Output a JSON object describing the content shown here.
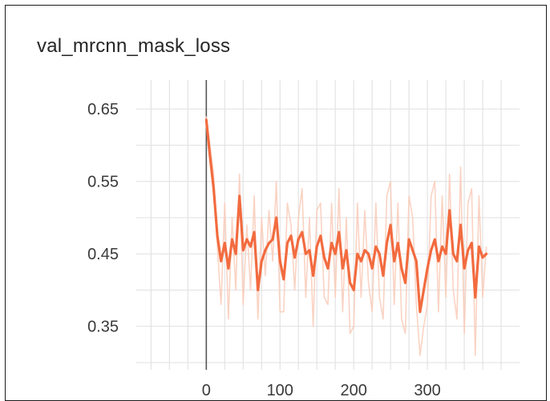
{
  "chart_data": {
    "type": "line",
    "title": "val_mrcnn_mask_loss",
    "xlabel": "",
    "ylabel": "",
    "xlim": [
      -95,
      425
    ],
    "ylim": [
      0.29,
      0.69
    ],
    "x_ticks": [
      0,
      100,
      200,
      300
    ],
    "y_ticks": [
      0.35,
      0.45,
      0.55,
      0.65
    ],
    "y_tick_labels": [
      "0.35",
      "0.45",
      "0.55",
      "0.65"
    ],
    "x_tick_labels": [
      "0",
      "100",
      "200",
      "300"
    ],
    "grid": true,
    "smoothed_color": "#f26b3f",
    "raw_color": "#f9cbb8",
    "series": [
      {
        "x": [
          0,
          5,
          10,
          15,
          20,
          25,
          30,
          35,
          40,
          45,
          50,
          55,
          60,
          65,
          70,
          75,
          80,
          85,
          90,
          95,
          100,
          105,
          110,
          115,
          120,
          125,
          130,
          135,
          140,
          145,
          150,
          155,
          160,
          165,
          170,
          175,
          180,
          185,
          190,
          195,
          200,
          205,
          210,
          215,
          220,
          225,
          230,
          235,
          240,
          245,
          250,
          255,
          260,
          265,
          270,
          275,
          280,
          285,
          290,
          295,
          300,
          305,
          310,
          315,
          320,
          325,
          330,
          335,
          340,
          345,
          350,
          355,
          360,
          365,
          370,
          375,
          380
        ],
        "smoothed": [
          0.635,
          0.585,
          0.54,
          0.475,
          0.44,
          0.465,
          0.43,
          0.47,
          0.45,
          0.53,
          0.455,
          0.47,
          0.46,
          0.48,
          0.4,
          0.44,
          0.455,
          0.465,
          0.47,
          0.5,
          0.44,
          0.415,
          0.465,
          0.475,
          0.445,
          0.47,
          0.48,
          0.45,
          0.455,
          0.42,
          0.46,
          0.475,
          0.445,
          0.43,
          0.465,
          0.45,
          0.48,
          0.43,
          0.455,
          0.41,
          0.4,
          0.45,
          0.44,
          0.455,
          0.45,
          0.43,
          0.46,
          0.45,
          0.42,
          0.465,
          0.49,
          0.44,
          0.465,
          0.43,
          0.41,
          0.47,
          0.455,
          0.44,
          0.37,
          0.4,
          0.43,
          0.455,
          0.47,
          0.44,
          0.46,
          0.45,
          0.51,
          0.45,
          0.44,
          0.49,
          0.43,
          0.455,
          0.465,
          0.39,
          0.46,
          0.445,
          0.45
        ],
        "raw": [
          0.64,
          0.6,
          0.56,
          0.46,
          0.38,
          0.52,
          0.36,
          0.5,
          0.4,
          0.56,
          0.38,
          0.49,
          0.4,
          0.53,
          0.36,
          0.5,
          0.42,
          0.51,
          0.44,
          0.55,
          0.37,
          0.37,
          0.52,
          0.49,
          0.4,
          0.5,
          0.54,
          0.39,
          0.5,
          0.35,
          0.51,
          0.52,
          0.39,
          0.38,
          0.52,
          0.39,
          0.54,
          0.37,
          0.5,
          0.34,
          0.35,
          0.52,
          0.39,
          0.51,
          0.41,
          0.37,
          0.52,
          0.39,
          0.36,
          0.53,
          0.55,
          0.38,
          0.52,
          0.36,
          0.34,
          0.53,
          0.5,
          0.38,
          0.31,
          0.35,
          0.38,
          0.53,
          0.55,
          0.37,
          0.53,
          0.39,
          0.56,
          0.4,
          0.36,
          0.57,
          0.34,
          0.52,
          0.54,
          0.31,
          0.53,
          0.39,
          0.46
        ]
      }
    ]
  }
}
